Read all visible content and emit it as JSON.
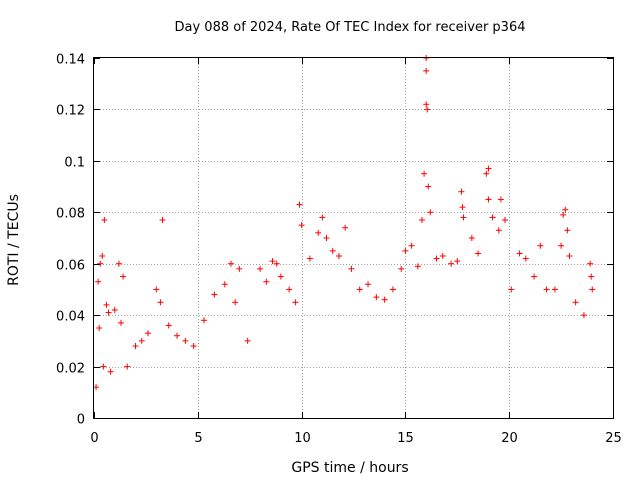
{
  "chart_data": {
    "type": "scatter",
    "title": "Day 088 of 2024, Rate Of TEC Index for receiver p364",
    "xlabel": "GPS time / hours",
    "ylabel": "ROTI / TECUs",
    "xlim": [
      0,
      25
    ],
    "ylim": [
      0,
      0.14
    ],
    "xticks": [
      0,
      5,
      10,
      15,
      20,
      25
    ],
    "yticks": [
      0,
      0.02,
      0.04,
      0.06,
      0.08,
      0.1,
      0.12,
      0.14
    ],
    "xtick_labels": [
      "0",
      "5",
      "10",
      "15",
      "20",
      "25"
    ],
    "ytick_labels": [
      "0",
      "0.02",
      "0.04",
      "0.06",
      "0.08",
      "0.1",
      "0.12",
      "0.14"
    ],
    "grid": true,
    "marker": "+",
    "color": "#ff0000",
    "series": [
      {
        "name": "ROTI",
        "points": [
          [
            0.1,
            0.012
          ],
          [
            0.2,
            0.053
          ],
          [
            0.25,
            0.035
          ],
          [
            0.3,
            0.06
          ],
          [
            0.4,
            0.063
          ],
          [
            0.45,
            0.02
          ],
          [
            0.5,
            0.077
          ],
          [
            0.6,
            0.044
          ],
          [
            0.7,
            0.041
          ],
          [
            0.8,
            0.018
          ],
          [
            1.0,
            0.042
          ],
          [
            1.2,
            0.06
          ],
          [
            1.3,
            0.037
          ],
          [
            1.4,
            0.055
          ],
          [
            1.6,
            0.02
          ],
          [
            2.0,
            0.028
          ],
          [
            2.3,
            0.03
          ],
          [
            2.6,
            0.033
          ],
          [
            3.0,
            0.05
          ],
          [
            3.2,
            0.045
          ],
          [
            3.3,
            0.077
          ],
          [
            3.6,
            0.036
          ],
          [
            4.0,
            0.032
          ],
          [
            4.4,
            0.03
          ],
          [
            4.8,
            0.028
          ],
          [
            5.3,
            0.038
          ],
          [
            5.8,
            0.048
          ],
          [
            6.3,
            0.052
          ],
          [
            6.6,
            0.06
          ],
          [
            6.8,
            0.045
          ],
          [
            7.0,
            0.058
          ],
          [
            7.4,
            0.03
          ],
          [
            8.0,
            0.058
          ],
          [
            8.3,
            0.053
          ],
          [
            8.6,
            0.061
          ],
          [
            8.8,
            0.06
          ],
          [
            9.0,
            0.055
          ],
          [
            9.4,
            0.05
          ],
          [
            9.7,
            0.045
          ],
          [
            9.9,
            0.083
          ],
          [
            10.0,
            0.075
          ],
          [
            10.4,
            0.062
          ],
          [
            10.8,
            0.072
          ],
          [
            11.0,
            0.078
          ],
          [
            11.2,
            0.07
          ],
          [
            11.5,
            0.065
          ],
          [
            11.8,
            0.063
          ],
          [
            12.1,
            0.074
          ],
          [
            12.4,
            0.058
          ],
          [
            12.8,
            0.05
          ],
          [
            13.2,
            0.052
          ],
          [
            13.6,
            0.047
          ],
          [
            14.0,
            0.046
          ],
          [
            14.4,
            0.05
          ],
          [
            14.8,
            0.058
          ],
          [
            15.0,
            0.065
          ],
          [
            15.3,
            0.067
          ],
          [
            15.6,
            0.059
          ],
          [
            15.8,
            0.077
          ],
          [
            15.9,
            0.095
          ],
          [
            16.0,
            0.14
          ],
          [
            16.0,
            0.135
          ],
          [
            16.0,
            0.122
          ],
          [
            16.05,
            0.12
          ],
          [
            16.1,
            0.09
          ],
          [
            16.2,
            0.08
          ],
          [
            16.5,
            0.062
          ],
          [
            16.8,
            0.063
          ],
          [
            17.2,
            0.06
          ],
          [
            17.5,
            0.061
          ],
          [
            17.7,
            0.088
          ],
          [
            17.75,
            0.082
          ],
          [
            17.8,
            0.078
          ],
          [
            18.2,
            0.07
          ],
          [
            18.5,
            0.064
          ],
          [
            18.9,
            0.095
          ],
          [
            19.0,
            0.097
          ],
          [
            19.0,
            0.085
          ],
          [
            19.2,
            0.078
          ],
          [
            19.5,
            0.073
          ],
          [
            19.6,
            0.085
          ],
          [
            19.8,
            0.077
          ],
          [
            20.1,
            0.05
          ],
          [
            20.5,
            0.064
          ],
          [
            20.8,
            0.062
          ],
          [
            21.2,
            0.055
          ],
          [
            21.5,
            0.067
          ],
          [
            21.8,
            0.05
          ],
          [
            22.2,
            0.05
          ],
          [
            22.5,
            0.067
          ],
          [
            22.6,
            0.079
          ],
          [
            22.7,
            0.081
          ],
          [
            22.8,
            0.073
          ],
          [
            22.9,
            0.063
          ],
          [
            23.2,
            0.045
          ],
          [
            23.6,
            0.04
          ],
          [
            23.9,
            0.06
          ],
          [
            23.95,
            0.055
          ],
          [
            24.0,
            0.05
          ]
        ]
      }
    ]
  }
}
